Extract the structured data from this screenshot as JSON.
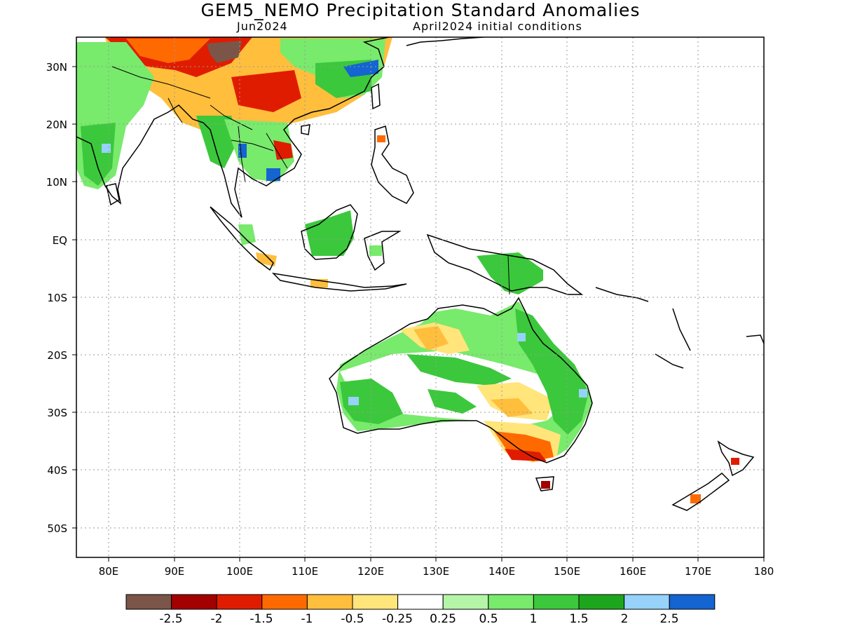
{
  "title": "GEM5_NEMO Precipitation Standard Anomalies",
  "subtitle_left": "Jun2024",
  "subtitle_right": "April2024 initial conditions",
  "map": {
    "lon_range": [
      75,
      180
    ],
    "lat_range": [
      -55,
      35
    ],
    "lon_ticks": [
      "80E",
      "90E",
      "100E",
      "110E",
      "120E",
      "130E",
      "140E",
      "150E",
      "160E",
      "170E",
      "180"
    ],
    "lat_ticks": [
      "30N",
      "20N",
      "10N",
      "EQ",
      "10S",
      "20S",
      "30S",
      "40S",
      "50S"
    ],
    "gridlines": "dotted"
  },
  "colorbar": {
    "colors": [
      "#7a5548",
      "#a30000",
      "#e01c00",
      "#ff6a00",
      "#ffbe3c",
      "#ffe57a",
      "#ffffff",
      "#b4f5a8",
      "#78ea6c",
      "#3cc83c",
      "#1ea51e",
      "#96d2fa",
      "#1464d2"
    ],
    "labels": [
      "-2.5",
      "-2",
      "-1.5",
      "-1",
      "-0.5",
      "-0.25",
      "0.25",
      "0.5",
      "1",
      "1.5",
      "2",
      "2.5"
    ]
  },
  "anomaly_colors": {
    "dark_brown": "#7a5548",
    "dark_red": "#a30000",
    "red": "#e01c00",
    "orange": "#ff6a00",
    "light_orange": "#ffbe3c",
    "yellow": "#ffe57a",
    "light_green": "#b4f5a8",
    "green": "#78ea6c",
    "mid_green": "#3cc83c",
    "dark_green": "#1ea51e",
    "light_blue": "#96d2fa",
    "blue": "#1464d2"
  }
}
